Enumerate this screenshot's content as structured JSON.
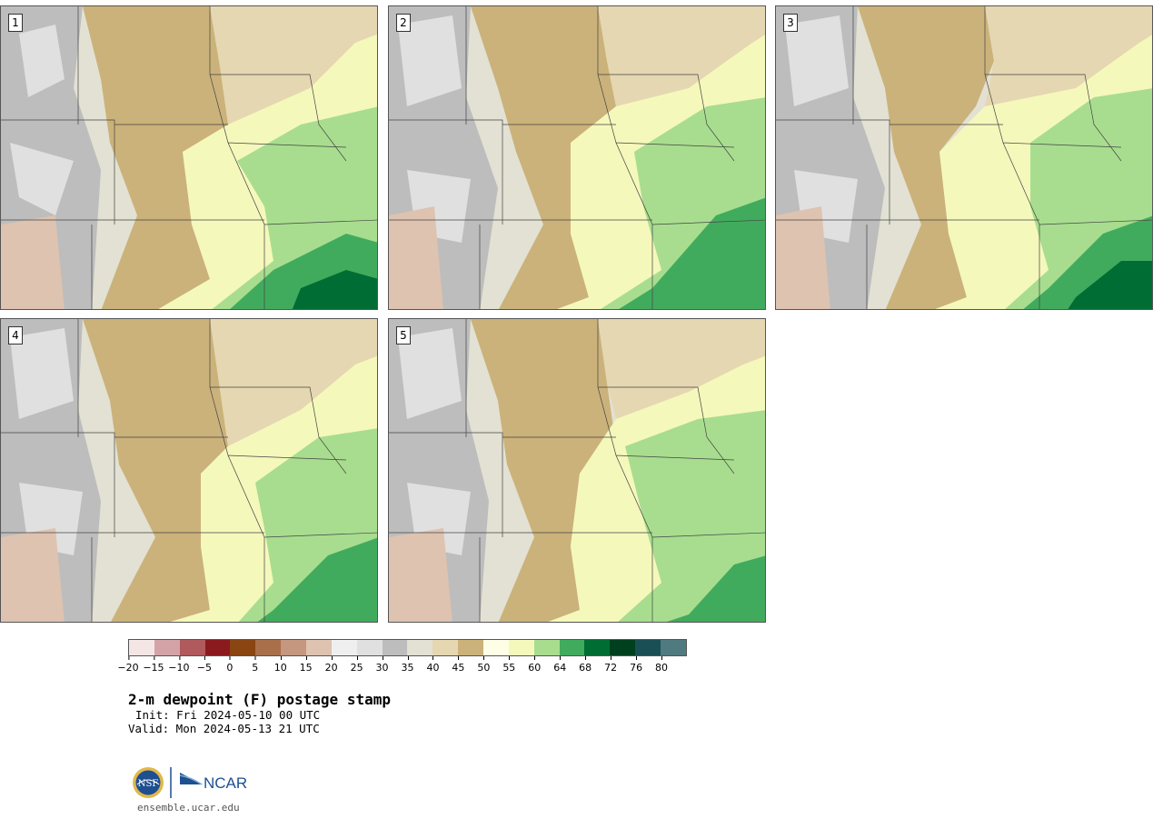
{
  "panels": [
    {
      "label": "1"
    },
    {
      "label": "2"
    },
    {
      "label": "3"
    },
    {
      "label": "4"
    },
    {
      "label": "5"
    }
  ],
  "colorbar": {
    "colors": [
      "#f5e6e6",
      "#d4a3a8",
      "#b05a5e",
      "#8b1a1e",
      "#8a4512",
      "#a86f4a",
      "#c4977e",
      "#dec3b0",
      "#efefef",
      "#e0e0e0",
      "#bdbdbd",
      "#e2e1d3",
      "#e5d7b1",
      "#cbb27a",
      "#fefee6",
      "#f5f8bb",
      "#a8dd8f",
      "#41ab5d",
      "#006d34",
      "#00401f",
      "#1a4f55",
      "#4f7a80"
    ],
    "tick_labels": [
      "−20",
      "−15",
      "−10",
      "−5",
      "0",
      "5",
      "10",
      "15",
      "20",
      "25",
      "30",
      "35",
      "40",
      "45",
      "50",
      "55",
      "60",
      "64",
      "68",
      "72",
      "76",
      "80"
    ]
  },
  "title": "2-m dewpoint (F) postage stamp",
  "init_text": "Init: Fri 2024-05-10 00 UTC",
  "valid_text": "Valid: Mon 2024-05-13 21 UTC",
  "logo": {
    "nsf": "NSF",
    "ncar": "NCAR"
  },
  "site": "ensemble.ucar.edu"
}
